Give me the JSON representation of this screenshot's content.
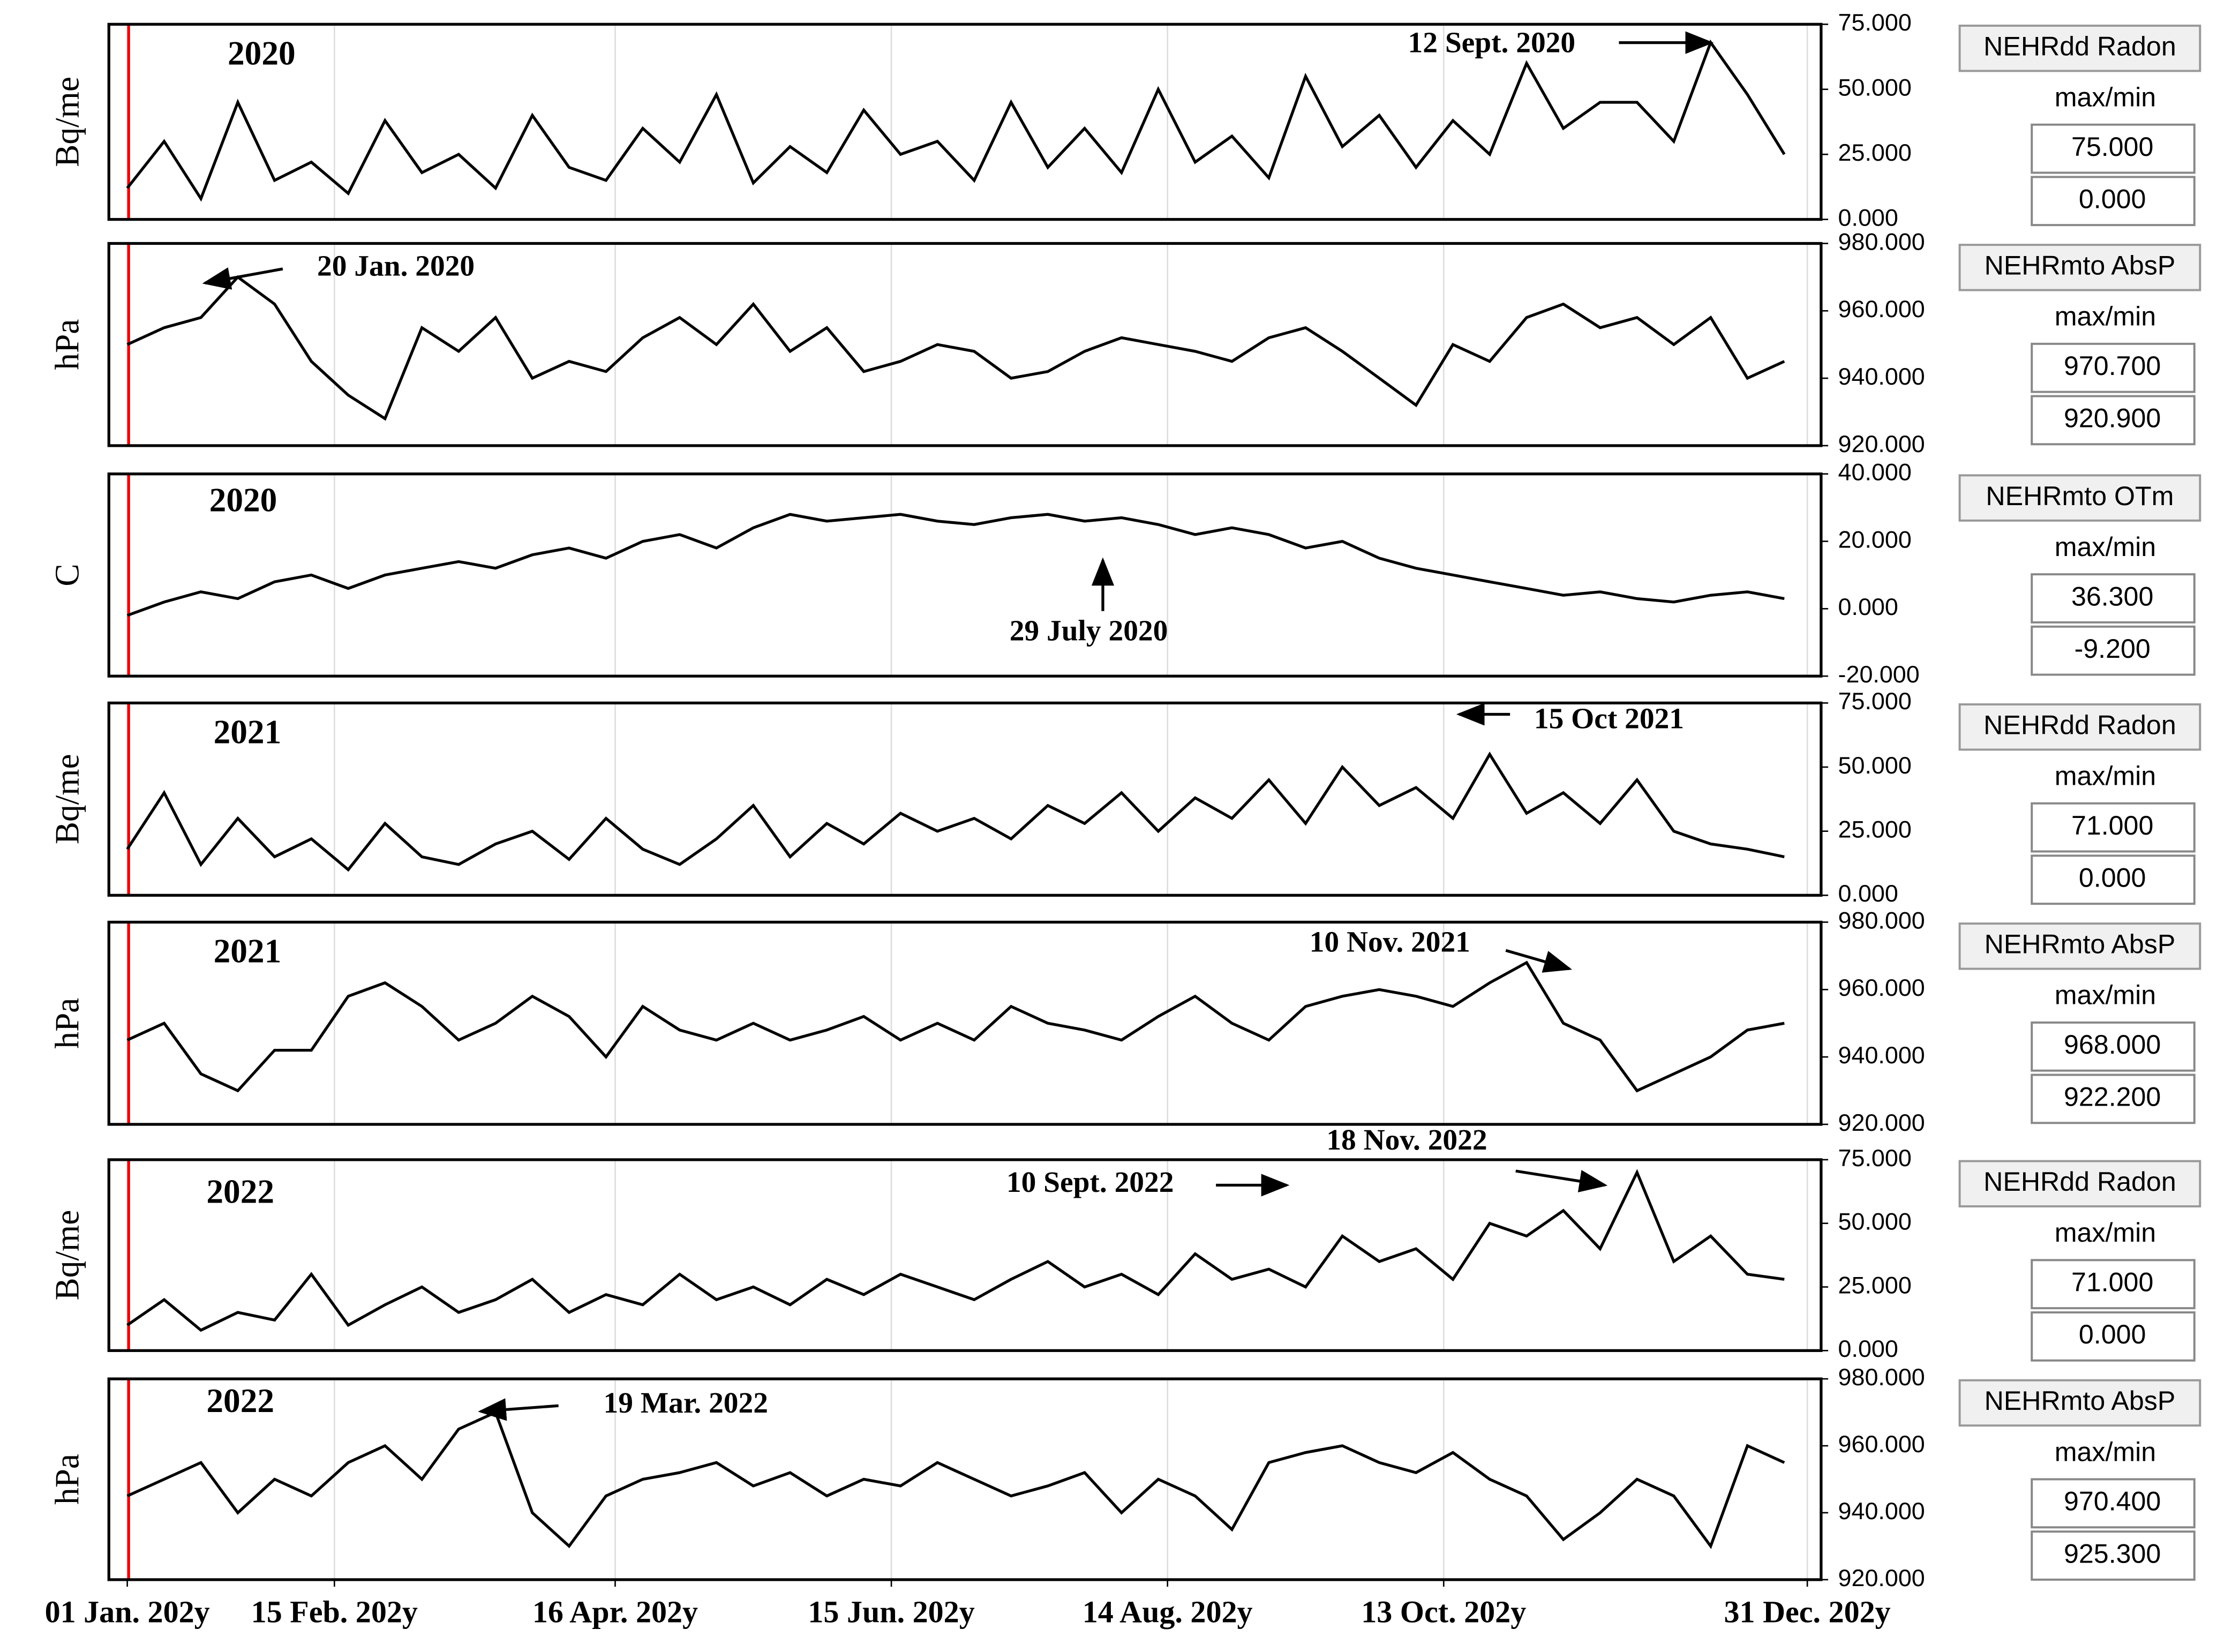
{
  "chart_data": [
    {
      "type": "line",
      "ylabel": "Bq/me",
      "year_label": "2020",
      "annotations": [
        {
          "text": "12 Sept. 2020"
        }
      ],
      "xlim": [
        -4,
        368
      ],
      "ylim": [
        0,
        75
      ],
      "yticks": [
        {
          "value": 0,
          "label": "0.000"
        },
        {
          "value": 25,
          "label": "25.000"
        },
        {
          "value": 50,
          "label": "50.000"
        },
        {
          "value": 75,
          "label": "75.000"
        }
      ],
      "x": [
        0,
        8,
        16,
        24,
        32,
        40,
        48,
        56,
        64,
        72,
        80,
        88,
        96,
        104,
        112,
        120,
        128,
        136,
        144,
        152,
        160,
        168,
        176,
        184,
        192,
        200,
        208,
        216,
        224,
        232,
        240,
        248,
        256,
        264,
        272,
        280,
        288,
        296,
        304,
        312,
        320,
        328,
        336,
        344,
        352,
        360
      ],
      "values": [
        12,
        30,
        8,
        45,
        15,
        22,
        10,
        38,
        18,
        25,
        12,
        40,
        20,
        15,
        35,
        22,
        48,
        14,
        28,
        18,
        42,
        25,
        30,
        15,
        45,
        20,
        35,
        18,
        50,
        22,
        32,
        16,
        55,
        28,
        40,
        20,
        38,
        25,
        60,
        35,
        45,
        45,
        30,
        68,
        48,
        25
      ],
      "side_panel": {
        "name": "NEHRdd Radon",
        "caption": "max/min",
        "max": "75.000",
        "min": "0.000"
      }
    },
    {
      "type": "line",
      "ylabel": "hPa",
      "annotations": [
        {
          "text": "20 Jan. 2020"
        }
      ],
      "xlim": [
        -4,
        368
      ],
      "ylim": [
        920,
        980
      ],
      "yticks": [
        {
          "value": 920,
          "label": "920.000"
        },
        {
          "value": 940,
          "label": "940.000"
        },
        {
          "value": 960,
          "label": "960.000"
        },
        {
          "value": 980,
          "label": "980.000"
        }
      ],
      "x": [
        0,
        8,
        16,
        24,
        32,
        40,
        48,
        56,
        64,
        72,
        80,
        88,
        96,
        104,
        112,
        120,
        128,
        136,
        144,
        152,
        160,
        168,
        176,
        184,
        192,
        200,
        208,
        216,
        224,
        232,
        240,
        248,
        256,
        264,
        272,
        280,
        288,
        296,
        304,
        312,
        320,
        328,
        336,
        344,
        352,
        360
      ],
      "values": [
        950,
        955,
        958,
        970,
        962,
        945,
        935,
        928,
        955,
        948,
        958,
        940,
        945,
        942,
        952,
        958,
        950,
        962,
        948,
        955,
        942,
        945,
        950,
        948,
        940,
        942,
        948,
        952,
        950,
        948,
        945,
        952,
        955,
        948,
        940,
        932,
        950,
        945,
        958,
        962,
        955,
        958,
        950,
        958,
        940,
        945
      ],
      "side_panel": {
        "name": "NEHRmto AbsP",
        "caption": "max/min",
        "max": "970.700",
        "min": "920.900"
      }
    },
    {
      "type": "line",
      "ylabel": "C",
      "year_label": "2020",
      "annotations": [
        {
          "text": "29 July 2020"
        }
      ],
      "xlim": [
        -4,
        368
      ],
      "ylim": [
        -20,
        40
      ],
      "yticks": [
        {
          "value": -20,
          "label": "-20.000"
        },
        {
          "value": 0,
          "label": "0.000"
        },
        {
          "value": 20,
          "label": "20.000"
        },
        {
          "value": 40,
          "label": "40.000"
        }
      ],
      "x": [
        0,
        8,
        16,
        24,
        32,
        40,
        48,
        56,
        64,
        72,
        80,
        88,
        96,
        104,
        112,
        120,
        128,
        136,
        144,
        152,
        160,
        168,
        176,
        184,
        192,
        200,
        208,
        216,
        224,
        232,
        240,
        248,
        256,
        264,
        272,
        280,
        288,
        296,
        304,
        312,
        320,
        328,
        336,
        344,
        352,
        360
      ],
      "values": [
        -2,
        2,
        5,
        3,
        8,
        10,
        6,
        10,
        12,
        14,
        12,
        16,
        18,
        15,
        20,
        22,
        18,
        24,
        28,
        26,
        27,
        28,
        26,
        25,
        27,
        28,
        26,
        27,
        25,
        22,
        24,
        22,
        18,
        20,
        15,
        12,
        10,
        8,
        6,
        4,
        5,
        3,
        2,
        4,
        5,
        3
      ],
      "side_panel": {
        "name": "NEHRmto OTm",
        "caption": "max/min",
        "max": "36.300",
        "min": "-9.200"
      }
    },
    {
      "type": "line",
      "ylabel": "Bq/me",
      "year_label": "2021",
      "annotations": [
        {
          "text": "15 Oct 2021"
        }
      ],
      "xlim": [
        -4,
        368
      ],
      "ylim": [
        0,
        75
      ],
      "yticks": [
        {
          "value": 0,
          "label": "0.000"
        },
        {
          "value": 25,
          "label": "25.000"
        },
        {
          "value": 50,
          "label": "50.000"
        },
        {
          "value": 75,
          "label": "75.000"
        }
      ],
      "x": [
        0,
        8,
        16,
        24,
        32,
        40,
        48,
        56,
        64,
        72,
        80,
        88,
        96,
        104,
        112,
        120,
        128,
        136,
        144,
        152,
        160,
        168,
        176,
        184,
        192,
        200,
        208,
        216,
        224,
        232,
        240,
        248,
        256,
        264,
        272,
        280,
        288,
        296,
        304,
        312,
        320,
        328,
        336,
        344,
        352,
        360
      ],
      "values": [
        18,
        40,
        12,
        30,
        15,
        22,
        10,
        28,
        15,
        12,
        20,
        25,
        14,
        30,
        18,
        12,
        22,
        35,
        15,
        28,
        20,
        32,
        25,
        30,
        22,
        35,
        28,
        40,
        25,
        38,
        30,
        45,
        28,
        50,
        35,
        42,
        30,
        55,
        32,
        40,
        28,
        45,
        25,
        20,
        18,
        15
      ],
      "side_panel": {
        "name": "NEHRdd Radon",
        "caption": "max/min",
        "max": "71.000",
        "min": "0.000"
      }
    },
    {
      "type": "line",
      "ylabel": "hPa",
      "year_label": "2021",
      "annotations": [
        {
          "text": "10 Nov. 2021"
        }
      ],
      "xlim": [
        -4,
        368
      ],
      "ylim": [
        920,
        980
      ],
      "yticks": [
        {
          "value": 920,
          "label": "920.000"
        },
        {
          "value": 940,
          "label": "940.000"
        },
        {
          "value": 960,
          "label": "960.000"
        },
        {
          "value": 980,
          "label": "980.000"
        }
      ],
      "x": [
        0,
        8,
        16,
        24,
        32,
        40,
        48,
        56,
        64,
        72,
        80,
        88,
        96,
        104,
        112,
        120,
        128,
        136,
        144,
        152,
        160,
        168,
        176,
        184,
        192,
        200,
        208,
        216,
        224,
        232,
        240,
        248,
        256,
        264,
        272,
        280,
        288,
        296,
        304,
        312,
        320,
        328,
        336,
        344,
        352,
        360
      ],
      "values": [
        945,
        950,
        935,
        930,
        942,
        942,
        958,
        962,
        955,
        945,
        950,
        958,
        952,
        940,
        955,
        948,
        945,
        950,
        945,
        948,
        952,
        945,
        950,
        945,
        955,
        950,
        948,
        945,
        952,
        958,
        950,
        945,
        955,
        958,
        960,
        958,
        955,
        962,
        968,
        950,
        945,
        930,
        935,
        940,
        948,
        950
      ],
      "side_panel": {
        "name": "NEHRmto AbsP",
        "caption": "max/min",
        "max": "968.000",
        "min": "922.200"
      }
    },
    {
      "type": "line",
      "ylabel": "Bq/me",
      "year_label": "2022",
      "annotations": [
        {
          "text": "10 Sept. 2022"
        },
        {
          "text": "18 Nov. 2022"
        }
      ],
      "xlim": [
        -4,
        368
      ],
      "ylim": [
        0,
        75
      ],
      "yticks": [
        {
          "value": 0,
          "label": "0.000"
        },
        {
          "value": 25,
          "label": "25.000"
        },
        {
          "value": 50,
          "label": "50.000"
        },
        {
          "value": 75,
          "label": "75.000"
        }
      ],
      "x": [
        0,
        8,
        16,
        24,
        32,
        40,
        48,
        56,
        64,
        72,
        80,
        88,
        96,
        104,
        112,
        120,
        128,
        136,
        144,
        152,
        160,
        168,
        176,
        184,
        192,
        200,
        208,
        216,
        224,
        232,
        240,
        248,
        256,
        264,
        272,
        280,
        288,
        296,
        304,
        312,
        320,
        328,
        336,
        344,
        352,
        360
      ],
      "values": [
        10,
        20,
        8,
        15,
        12,
        30,
        10,
        18,
        25,
        15,
        20,
        28,
        15,
        22,
        18,
        30,
        20,
        25,
        18,
        28,
        22,
        30,
        25,
        20,
        28,
        35,
        25,
        30,
        22,
        38,
        28,
        32,
        25,
        45,
        35,
        40,
        28,
        50,
        45,
        55,
        40,
        70,
        35,
        45,
        30,
        28
      ],
      "side_panel": {
        "name": "NEHRdd Radon",
        "caption": "max/min",
        "max": "71.000",
        "min": "0.000"
      }
    },
    {
      "type": "line",
      "ylabel": "hPa",
      "year_label": "2022",
      "annotations": [
        {
          "text": "19 Mar. 2022"
        }
      ],
      "xlim": [
        -4,
        368
      ],
      "ylim": [
        920,
        980
      ],
      "yticks": [
        {
          "value": 920,
          "label": "920.000"
        },
        {
          "value": 940,
          "label": "940.000"
        },
        {
          "value": 960,
          "label": "960.000"
        },
        {
          "value": 980,
          "label": "980.000"
        }
      ],
      "xticks": [
        {
          "value": 0,
          "label": "01 Jan. 202y"
        },
        {
          "value": 45,
          "label": "15 Feb. 202y"
        },
        {
          "value": 106,
          "label": "16 Apr. 202y"
        },
        {
          "value": 166,
          "label": "15 Jun. 202y"
        },
        {
          "value": 226,
          "label": "14 Aug. 202y"
        },
        {
          "value": 286,
          "label": "13 Oct. 202y"
        },
        {
          "value": 365,
          "label": "31 Dec. 202y"
        }
      ],
      "x": [
        0,
        8,
        16,
        24,
        32,
        40,
        48,
        56,
        64,
        72,
        80,
        88,
        96,
        104,
        112,
        120,
        128,
        136,
        144,
        152,
        160,
        168,
        176,
        184,
        192,
        200,
        208,
        216,
        224,
        232,
        240,
        248,
        256,
        264,
        272,
        280,
        288,
        296,
        304,
        312,
        320,
        328,
        336,
        344,
        352,
        360
      ],
      "values": [
        945,
        950,
        955,
        940,
        950,
        945,
        955,
        960,
        950,
        965,
        970,
        940,
        930,
        945,
        950,
        952,
        955,
        948,
        952,
        945,
        950,
        948,
        955,
        950,
        945,
        948,
        952,
        940,
        950,
        945,
        935,
        955,
        958,
        960,
        955,
        952,
        958,
        950,
        945,
        932,
        940,
        950,
        945,
        930,
        960,
        955
      ],
      "side_panel": {
        "name": "NEHRmto AbsP",
        "caption": "max/min",
        "max": "970.400",
        "min": "925.300"
      }
    }
  ]
}
